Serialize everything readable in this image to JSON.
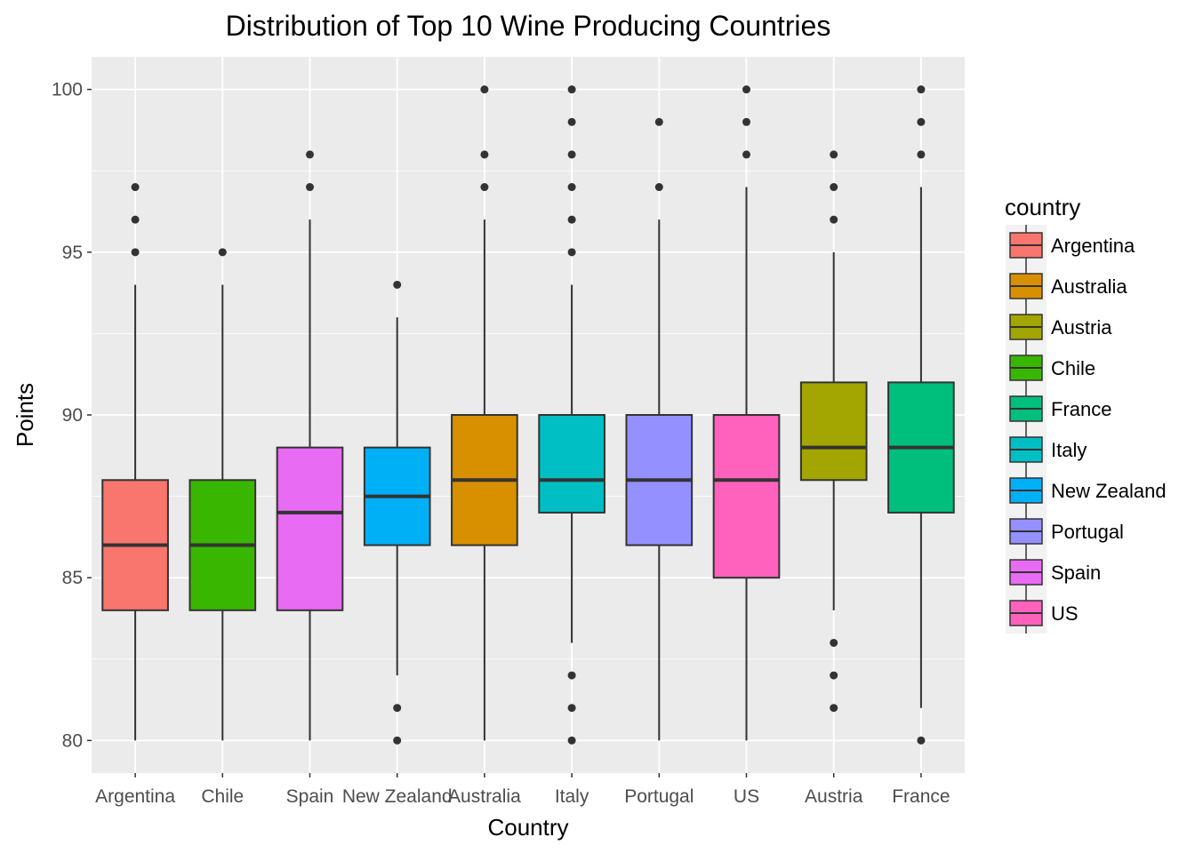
{
  "chart_data": {
    "type": "boxplot",
    "title": "Distribution of Top 10 Wine Producing Countries",
    "xlabel": "Country",
    "ylabel": "Points",
    "ylim": [
      79,
      101
    ],
    "yticks": [
      80,
      85,
      90,
      95,
      100
    ],
    "grid": true,
    "legend": {
      "title": "country",
      "position": "right",
      "entries": [
        {
          "label": "Argentina",
          "color": "#F8766D"
        },
        {
          "label": "Australia",
          "color": "#D89000"
        },
        {
          "label": "Austria",
          "color": "#A3A500"
        },
        {
          "label": "Chile",
          "color": "#39B600"
        },
        {
          "label": "France",
          "color": "#00BF7D"
        },
        {
          "label": "Italy",
          "color": "#00BFC4"
        },
        {
          "label": "New Zealand",
          "color": "#00B0F6"
        },
        {
          "label": "Portugal",
          "color": "#9590FF"
        },
        {
          "label": "Spain",
          "color": "#E76BF3"
        },
        {
          "label": "US",
          "color": "#FF62BC"
        }
      ]
    },
    "categories": [
      "Argentina",
      "Chile",
      "Spain",
      "New Zealand",
      "Australia",
      "Italy",
      "Portugal",
      "US",
      "Austria",
      "France"
    ],
    "boxes": [
      {
        "name": "Argentina",
        "color": "#F8766D",
        "whisker_low": 80,
        "q1": 84,
        "median": 86,
        "q3": 88,
        "whisker_high": 94,
        "outliers": [
          95,
          96,
          97
        ]
      },
      {
        "name": "Chile",
        "color": "#39B600",
        "whisker_low": 80,
        "q1": 84,
        "median": 86,
        "q3": 88,
        "whisker_high": 94,
        "outliers": [
          95
        ]
      },
      {
        "name": "Spain",
        "color": "#E76BF3",
        "whisker_low": 80,
        "q1": 84,
        "median": 87,
        "q3": 89,
        "whisker_high": 96,
        "outliers": [
          97,
          98
        ]
      },
      {
        "name": "New Zealand",
        "color": "#00B0F6",
        "whisker_low": 82,
        "q1": 86,
        "median": 87.5,
        "q3": 89,
        "whisker_high": 93,
        "outliers": [
          80,
          81,
          94
        ]
      },
      {
        "name": "Australia",
        "color": "#D89000",
        "whisker_low": 80,
        "q1": 86,
        "median": 88,
        "q3": 90,
        "whisker_high": 96,
        "outliers": [
          97,
          98,
          100
        ]
      },
      {
        "name": "Italy",
        "color": "#00BFC4",
        "whisker_low": 83,
        "q1": 87,
        "median": 88,
        "q3": 90,
        "whisker_high": 94,
        "outliers": [
          80,
          81,
          82,
          95,
          96,
          97,
          98,
          99,
          100
        ]
      },
      {
        "name": "Portugal",
        "color": "#9590FF",
        "whisker_low": 80,
        "q1": 86,
        "median": 88,
        "q3": 90,
        "whisker_high": 96,
        "outliers": [
          97,
          99
        ]
      },
      {
        "name": "US",
        "color": "#FF62BC",
        "whisker_low": 80,
        "q1": 85,
        "median": 88,
        "q3": 90,
        "whisker_high": 97,
        "outliers": [
          98,
          99,
          100
        ]
      },
      {
        "name": "Austria",
        "color": "#A3A500",
        "whisker_low": 84,
        "q1": 88,
        "median": 89,
        "q3": 91,
        "whisker_high": 95,
        "outliers": [
          81,
          82,
          83,
          96,
          97,
          98
        ]
      },
      {
        "name": "France",
        "color": "#00BF7D",
        "whisker_low": 81,
        "q1": 87,
        "median": 89,
        "q3": 91,
        "whisker_high": 97,
        "outliers": [
          80,
          98,
          99,
          100
        ]
      }
    ]
  }
}
